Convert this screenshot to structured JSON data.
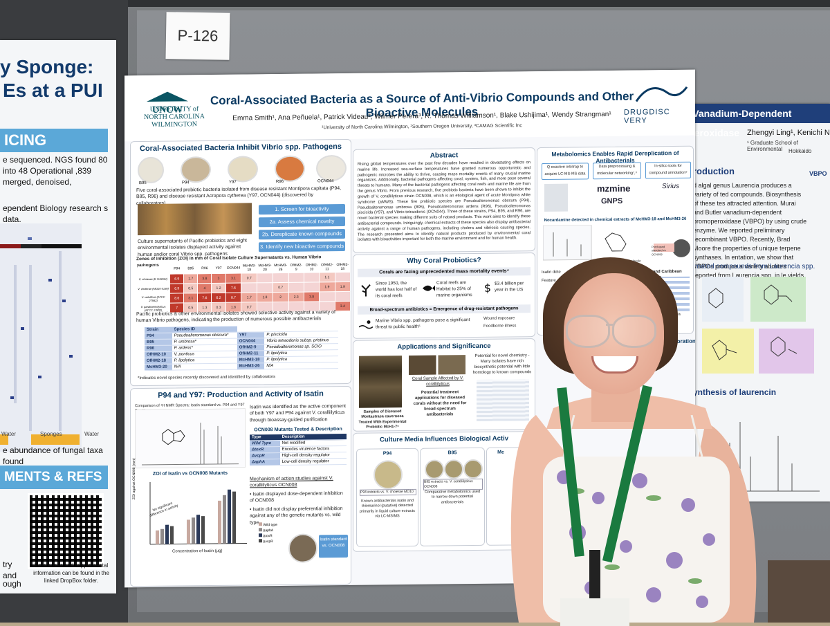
{
  "left_poster": {
    "title_line1": "y Sponge:",
    "title_line2": "Es at a PUI",
    "band1": "ICING",
    "text1": "e sequenced. NGS found 80 into 48 Operational ,839 merged, denoised,",
    "text2": "ependent Biology research s data.",
    "axis_water1": "Water",
    "axis_sponges": "Sponges",
    "axis_water2": "Water",
    "caption": "e abundance of fungal taxa found",
    "band2": "MENTS & REFS",
    "refs_text": "References and supplemental information can be found in the linked DropBox folder.",
    "refs_side": "try and",
    "refs_side2": "ough"
  },
  "board_card": "P-126",
  "poster": {
    "university_line1": "UNCW",
    "university_line2": "UNIVERSITY of NORTH CAROLINA WILMINGTON",
    "title": "Coral-Associated Bacteria as a Source of Anti-Vibrio Compounds and Other Bioactive Molecules",
    "authors": "Emma Smith¹, Ana Peñuela¹, Patrick Videau², Wilmer Perera³, R. Thomas Williamson¹, Blake Ushijima¹, Wendy Strangman¹",
    "affiliations": "¹University of North Carolina Wilmington, ²Southern Oregon University, ³CAMAG Scientific Inc",
    "logo_right": "DRUGDISC VERY",
    "section1": {
      "heading": "Coral-Associated Bacteria Inhibit Vibrio spp. Pathogens",
      "dishes": [
        "B95",
        "P94",
        "Y97",
        "R96",
        "OCN044"
      ],
      "text1": "Five coral-associated probiotic bacteria isolated from disease resistant Montipora capitata (P94, B95, R96) and disease resistant Acropora cytherea (Y97, OCN044) (discovered by collaborators)",
      "text2": "Culture supernatants of Pacific probiotics and eight environmental isolates displayed activity against human and/or coral Vibrio spp. pathogens",
      "steps": [
        "1. Screen for bioactivity",
        "2a. Assess chemical novelty",
        "2b. Dereplicate known compounds",
        "3. Identify new bioactive compounds"
      ],
      "zoi_title": "Zones of Inhibition (ZOI) in mm of Coral Isolate Culture Supernatants vs. Human Vibrio pathogens",
      "zoi_cols": [
        "P94",
        "B95",
        "R96",
        "Y97",
        "OCN044",
        "McHM3-18",
        "McHM3-20",
        "McHM3-26",
        "OfHM2-9",
        "OfHM2-10",
        "OfHM2-11",
        "OfHM2-18"
      ],
      "zoi_rows": [
        {
          "name": "V. cholerae (E N16961)",
          "vals": [
            "6.9",
            "1.7",
            "3.8",
            "3",
            "3.1",
            "0.7",
            "",
            "",
            "",
            "",
            "1.1",
            ""
          ]
        },
        {
          "name": "V. cholerae (MO10 0139)",
          "vals": [
            "6.9",
            "0.5",
            "4",
            "1.2",
            "7.6",
            "",
            "",
            "0.7",
            "",
            "",
            "1.9",
            "1.9"
          ]
        },
        {
          "name": "V. vulnificus (ATCC 27562)",
          "vals": [
            "8.6",
            "3.1",
            "7.6",
            "6.2",
            "8.7",
            "1.7",
            "1.8",
            "2",
            "2.3",
            "3.8",
            "",
            ""
          ]
        },
        {
          "name": "V. parahaemolyticus (ATCC 17802)",
          "vals": [
            "7",
            "0.5",
            "1.3",
            "0.3",
            "1.8",
            "0.7",
            "",
            "",
            "",
            "",
            "",
            "3.4"
          ]
        }
      ],
      "text3": "Pacific probiotics & other environmental isolates showed selective activity against a variety of human Vibrio pathogens, indicating the production of numerous possible antibacterials",
      "species_header": [
        "Strain",
        "Species ID"
      ],
      "species": [
        [
          "P94",
          "Pseudoalteromonas obscura*",
          "Y97",
          "P. piscicida"
        ],
        [
          "B95",
          "P. umbrosa*",
          "OCN044",
          "Vibrio tetraodonis subsp. pristinus"
        ],
        [
          "R96",
          "P. ardens*",
          "OfHM2-9",
          "Pseudoalteromonas sp. SCIO"
        ],
        [
          "OfHM2-10",
          "V. ponticus",
          "OfHM2-11",
          "P. lipolytica"
        ],
        [
          "OfHM2-18",
          "P. lipolytica",
          "McHM3-18",
          "P. lipolytica"
        ],
        [
          "McHM3-20",
          "N/A",
          "McHM3-26",
          "N/A"
        ]
      ],
      "footnote": "*Indicates novel species recently discovered and identified by collaborators"
    },
    "section2": {
      "heading": "P94 and Y97: Production and Activity of Isatin",
      "nmr_caption": "Comparison of ¹H NMR Spectra: Isatin standard vs. P94 and Y97 Fractions",
      "isatin_text": "Isatin was identified as the active component of both Y97 and P94 against V. coralliilyticus through bioassay-guided purification",
      "mutants_title": "OCN008 Mutants Tested & Description",
      "mutants_header": [
        "Type",
        "Description"
      ],
      "mutants": [
        [
          "Wild Type",
          "Not modified"
        ],
        [
          "ΔtoxR",
          "Encodes virulence factors"
        ],
        [
          "ΔvcpR",
          "High-cell density regulator"
        ],
        [
          "ΔaphA",
          "Low-cell density regulator"
        ]
      ],
      "mech_title": "Mechanism of action studies against V. coralliilyticus OCN008",
      "bullet1": "Isatin displayed dose-dependent inhibition of OCN008",
      "bullet2": "Isatin did not display preferential inhibition against any of the genetic mutants vs. wild type",
      "chart_title": "ZOI of Isatin vs OCN008 Mutants",
      "chart_ylabel": "ZOI against OCN008 (mm)",
      "chart_xlabel": "Concentration of Isatin (μg)",
      "chart_note": "No significant difference in activity",
      "legend": [
        "Wild type",
        "ΔaphA",
        "ΔtoxR",
        "ΔvcpR"
      ],
      "disk_label": "Isatin standard vs. OCN008"
    },
    "abstract": {
      "heading": "Abstract",
      "text": "Rising global temperatures over the past few decades have resulted in devastating effects on marine life. Increased sea-surface temperatures have granted numerous opportunistic and pathogenic microbes the ability to thrive, causing mass mortality events of many crucial marine organisms. Additionally, bacterial pathogens affecting coral, oysters, fish, and more pose several threats to humans. Many of the bacterial pathogens affecting coral reefs and marine life are from the genus Vibrio. From previous research, five probiotic bacteria have been shown to inhibit the growth of V. coralliilyticus strain OCN008, which is an etiological agent of acute Montipora white syndrome (aMWS). These five probiotic species are Pseudoalteromonas obscura (P94), Pseudoalteromonas umbrosa (B95), Pseudoalteromonas ardens (R96), Pseudoalteromonas piscicida (Y97), and Vibrio tetraodonis (OCN044). Three of these strains, P94, B95, and R96, are novel bacterial species making different suits of natural products. This work aims to identify these antibacterial compounds. Intriguingly, chemical extracts of these species also display antibacterial activity against a range of human pathogens, including cholera and vibriosis causing species. The research presented aims to identify natural products produced by environmental coral isolates with bioactivities important for both the marine environment and for human health."
    },
    "why": {
      "heading": "Why Coral Probiotics?",
      "sub1": "Corals are facing unprecedented mass mortality events⁴",
      "fact1": "Since 1950, the world has lost half of its coral reefs",
      "fact2": "Coral reefs are Habitat to 25% of marine organisms",
      "fact3": "$3.4 billion per year in the US",
      "sub2": "Broad-spectrum antibiotics = Emergence of drug-resistant pathogens",
      "fact4": "Marine Vibrio spp. pathogens pose a significant threat to public health⁵",
      "fact5": "Wound exposure",
      "fact6": "Foodborne illness"
    },
    "applications": {
      "heading": "Applications and Significance",
      "text1": "Potential for novel chemistry - Many isolates have rich biosynthetic potential with little homology to known compounds",
      "coral_label": "Coral Sample Affected by V. coralliilyticus",
      "samples_caption": "Samples of Diseased Montastraea cavernosa Treated With Experimental Probiotic McH1-7⁶",
      "text2": "Potential treatment applications for diseased corals without the need for broad-spectrum antibacterials"
    },
    "metabolomics": {
      "heading": "Metabolomics Enables Rapid Dereplication of Antibacterials",
      "box1": "Q exactive orbitrap to acquire LC-MS-MS data",
      "box2": "Data preprocessing & molecular networking⁷,⁸",
      "box3": "In-silico tools for compound annotation⁹",
      "tool1": "mzmine",
      "tool2": "GNPS",
      "tool3": "Sirius",
      "caption": "Nocardamine detected in chemical extracts of McHM3-18 and McHM3-26",
      "side_label": "Isatin dete",
      "side2": "Feature",
      "purchase": "Purchased standard vs OCN008",
      "known": "Known anti-Vibrio molecule"
    },
    "culture": {
      "heading": "Culture Media Influences Biological Activ",
      "p94_label": "P94",
      "b95_label": "B95",
      "p94_caption": "P94 extracts vs. V. cholerae MO10",
      "p94_text": "Known antibacterials isatin and thiomarinol (putative) detected primarily in liquid culture extracts via LC-MS/MS",
      "b95_caption": "B95 extracts vs. V. coralliilyticus OCN008",
      "b95_text": "Comparative metabolomics used to narrow down potential antibacterials",
      "mc_label": "Mc"
    },
    "right_edge": {
      "pacific": "acific and Caribbean probiotics",
      "activity": "Activity confirmation with purchased standard",
      "collab": "ollaboration"
    }
  },
  "right_poster": {
    "band": "Role of Vanadium-Dependent Bromoperoxidase",
    "author": "Zhengyi Ling¹, Kenichi N",
    "affil1": "¹ Graduate School of Environmental",
    "affil2": "Hokkaido",
    "intro_heading": "roduction",
    "intro_text": "d algal genus Laurencia produces a variety of ted compounds. Biosynthesis of these tes attracted attention. Murai and Butler vanadium-dependent bromoperoxidase (VBPO) by using crude enzyme. We reported preliminary recombinant VBPO. Recently, Brad Moore the properties of unique terpene synthases. In entation, we show that VBPOs produce a variety abolites reported from Laurencia spp. in le yields.",
    "sub1": "enated compounds from Laurencia spp.",
    "sub2": "ynthesis of laurencin",
    "vbpo": "VBPO"
  }
}
